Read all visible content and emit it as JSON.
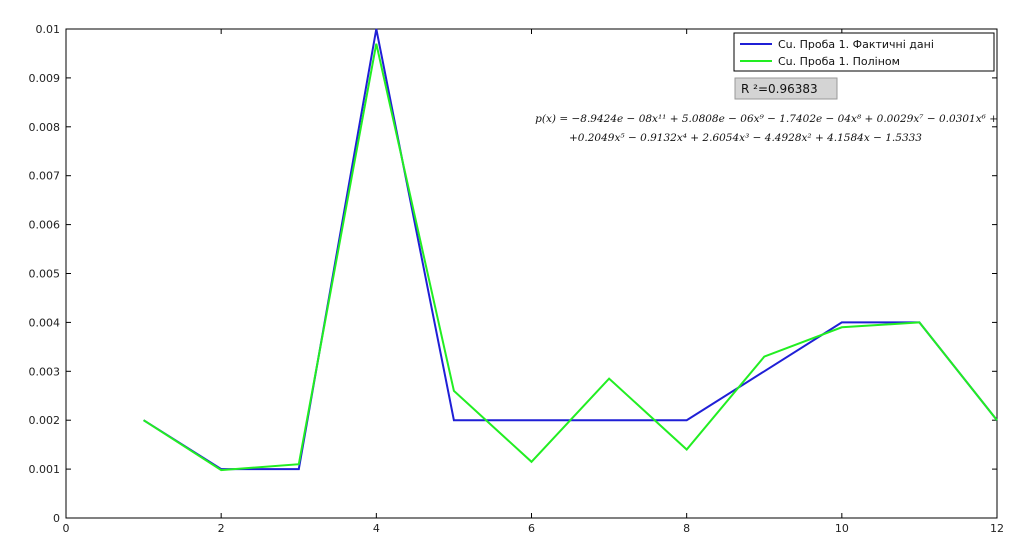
{
  "chart_data": {
    "type": "line",
    "title": "",
    "xlabel": "",
    "ylabel": "",
    "xlim": [
      0,
      12
    ],
    "ylim": [
      0,
      0.01
    ],
    "x_ticks": [
      "0",
      "2",
      "4",
      "6",
      "8",
      "10",
      "12"
    ],
    "y_ticks": [
      "0",
      "0.001",
      "0.002",
      "0.003",
      "0.004",
      "0.005",
      "0.006",
      "0.007",
      "0.008",
      "0.009",
      "0.01"
    ],
    "grid": false,
    "legend_position": "top-right",
    "series": [
      {
        "name": "Cu. Проба 1. Фактичні дані",
        "color": "#1f1fd6",
        "x": [
          1,
          2,
          3,
          4,
          5,
          6,
          7,
          8,
          9,
          10,
          11,
          12
        ],
        "y": [
          0.002,
          0.001,
          0.001,
          0.01,
          0.002,
          0.002,
          0.002,
          0.002,
          0.003,
          0.004,
          0.004,
          0.002
        ]
      },
      {
        "name": "Cu. Проба 1. Поліном",
        "color": "#22ee22",
        "x": [
          1,
          2,
          3,
          4,
          5,
          6,
          7,
          8,
          9,
          10,
          11,
          12
        ],
        "y": [
          0.002,
          0.00098,
          0.0011,
          0.0097,
          0.0026,
          0.00115,
          0.00285,
          0.0014,
          0.0033,
          0.0039,
          0.004,
          0.002
        ]
      }
    ],
    "annotations": {
      "r_squared": "R ²=0.96383",
      "equation_line1": "p(x) = −8.9424e − 08x¹¹ + 5.0808e − 06x⁹ − 1.7402e − 04x⁸ + 0.0029x⁷ − 0.0301x⁶ +",
      "equation_line2": "+0.2049x⁵ − 0.9132x⁴ + 2.6054x³ − 4.4928x² + 4.1584x − 1.5333"
    }
  }
}
